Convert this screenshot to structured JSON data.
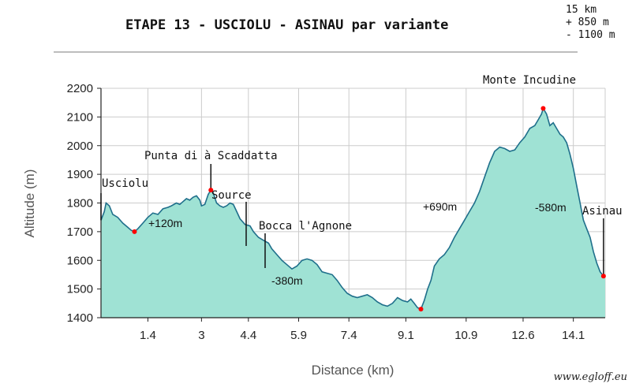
{
  "title": "ETAPE 13 - USCIOLU - ASINAU par variante",
  "stats": [
    "15 km",
    "+ 850 m",
    "- 1100 m"
  ],
  "credit": "www.egloff.eu",
  "colors": {
    "fill": "#9fe2d4",
    "line": "#1f6f8b",
    "grid": "#cccccc",
    "marker": "#ff0000"
  },
  "chart_data": {
    "type": "area",
    "title": "ETAPE 13 - USCIOLU - ASINAU par variante",
    "xlabel": "Distance (km)",
    "ylabel": "Altitude (m)",
    "xlim": [
      0,
      15.05
    ],
    "ylim": [
      1400,
      2200
    ],
    "grid": true,
    "x_ticks": [
      1.4,
      3,
      4.4,
      5.9,
      7.4,
      9.1,
      10.9,
      12.6,
      14.1
    ],
    "y_ticks": [
      1400,
      1500,
      1600,
      1700,
      1800,
      1900,
      2000,
      2100,
      2200
    ],
    "profile": [
      [
        0.0,
        1740
      ],
      [
        0.1,
        1770
      ],
      [
        0.15,
        1800
      ],
      [
        0.25,
        1790
      ],
      [
        0.35,
        1760
      ],
      [
        0.5,
        1750
      ],
      [
        0.65,
        1730
      ],
      [
        0.8,
        1715
      ],
      [
        0.9,
        1705
      ],
      [
        1.0,
        1700
      ],
      [
        1.1,
        1710
      ],
      [
        1.25,
        1730
      ],
      [
        1.4,
        1750
      ],
      [
        1.55,
        1765
      ],
      [
        1.7,
        1760
      ],
      [
        1.85,
        1780
      ],
      [
        2.0,
        1785
      ],
      [
        2.1,
        1790
      ],
      [
        2.25,
        1800
      ],
      [
        2.35,
        1795
      ],
      [
        2.45,
        1805
      ],
      [
        2.55,
        1815
      ],
      [
        2.65,
        1810
      ],
      [
        2.75,
        1820
      ],
      [
        2.85,
        1825
      ],
      [
        2.95,
        1810
      ],
      [
        3.0,
        1790
      ],
      [
        3.1,
        1795
      ],
      [
        3.2,
        1830
      ],
      [
        3.28,
        1845
      ],
      [
        3.35,
        1835
      ],
      [
        3.45,
        1800
      ],
      [
        3.55,
        1790
      ],
      [
        3.65,
        1785
      ],
      [
        3.75,
        1790
      ],
      [
        3.85,
        1800
      ],
      [
        3.95,
        1795
      ],
      [
        4.05,
        1770
      ],
      [
        4.15,
        1745
      ],
      [
        4.3,
        1725
      ],
      [
        4.45,
        1720
      ],
      [
        4.55,
        1700
      ],
      [
        4.7,
        1680
      ],
      [
        4.85,
        1670
      ],
      [
        5.0,
        1660
      ],
      [
        5.1,
        1640
      ],
      [
        5.25,
        1620
      ],
      [
        5.4,
        1600
      ],
      [
        5.55,
        1585
      ],
      [
        5.7,
        1570
      ],
      [
        5.85,
        1580
      ],
      [
        6.0,
        1600
      ],
      [
        6.15,
        1605
      ],
      [
        6.3,
        1600
      ],
      [
        6.45,
        1585
      ],
      [
        6.6,
        1560
      ],
      [
        6.75,
        1555
      ],
      [
        6.9,
        1550
      ],
      [
        7.05,
        1530
      ],
      [
        7.2,
        1505
      ],
      [
        7.35,
        1485
      ],
      [
        7.5,
        1475
      ],
      [
        7.65,
        1470
      ],
      [
        7.8,
        1475
      ],
      [
        7.95,
        1480
      ],
      [
        8.1,
        1470
      ],
      [
        8.25,
        1455
      ],
      [
        8.4,
        1445
      ],
      [
        8.55,
        1440
      ],
      [
        8.7,
        1450
      ],
      [
        8.85,
        1470
      ],
      [
        9.0,
        1460
      ],
      [
        9.15,
        1455
      ],
      [
        9.25,
        1465
      ],
      [
        9.35,
        1450
      ],
      [
        9.45,
        1435
      ],
      [
        9.55,
        1430
      ],
      [
        9.65,
        1460
      ],
      [
        9.75,
        1500
      ],
      [
        9.85,
        1530
      ],
      [
        9.95,
        1580
      ],
      [
        10.1,
        1605
      ],
      [
        10.25,
        1620
      ],
      [
        10.4,
        1645
      ],
      [
        10.55,
        1680
      ],
      [
        10.7,
        1710
      ],
      [
        10.85,
        1740
      ],
      [
        11.0,
        1770
      ],
      [
        11.15,
        1800
      ],
      [
        11.3,
        1840
      ],
      [
        11.45,
        1890
      ],
      [
        11.6,
        1940
      ],
      [
        11.75,
        1980
      ],
      [
        11.9,
        1995
      ],
      [
        12.05,
        1990
      ],
      [
        12.2,
        1980
      ],
      [
        12.35,
        1985
      ],
      [
        12.5,
        2010
      ],
      [
        12.65,
        2030
      ],
      [
        12.8,
        2060
      ],
      [
        12.95,
        2070
      ],
      [
        13.05,
        2090
      ],
      [
        13.15,
        2110
      ],
      [
        13.2,
        2130
      ],
      [
        13.3,
        2110
      ],
      [
        13.4,
        2070
      ],
      [
        13.5,
        2080
      ],
      [
        13.6,
        2060
      ],
      [
        13.7,
        2040
      ],
      [
        13.8,
        2030
      ],
      [
        13.9,
        2010
      ],
      [
        14.0,
        1970
      ],
      [
        14.1,
        1920
      ],
      [
        14.2,
        1860
      ],
      [
        14.3,
        1800
      ],
      [
        14.4,
        1740
      ],
      [
        14.5,
        1710
      ],
      [
        14.6,
        1680
      ],
      [
        14.7,
        1630
      ],
      [
        14.8,
        1590
      ],
      [
        14.9,
        1560
      ],
      [
        15.0,
        1545
      ],
      [
        15.05,
        1545
      ]
    ],
    "waypoints": [
      {
        "name": "Usciolu",
        "x": 0.0,
        "y": 1740,
        "marker": false
      },
      {
        "name": "",
        "x": 1.0,
        "y": 1700,
        "marker": true
      },
      {
        "name": "Punta di à Scaddatta",
        "x": 3.28,
        "y": 1845,
        "marker": true
      },
      {
        "name": "Source",
        "x": 4.5,
        "y": 1720,
        "marker": false
      },
      {
        "name": "Bocca l'Agnone",
        "x": 5.7,
        "y": 1570,
        "marker": false
      },
      {
        "name": "",
        "x": 9.55,
        "y": 1430,
        "marker": true
      },
      {
        "name": "Monte Incudine",
        "x": 13.2,
        "y": 2130,
        "marker": true
      },
      {
        "name": "Asinau",
        "x": 15.0,
        "y": 1545,
        "marker": true
      }
    ],
    "annotations": [
      "+120m",
      "-380m",
      "+690m",
      "-580m"
    ]
  }
}
